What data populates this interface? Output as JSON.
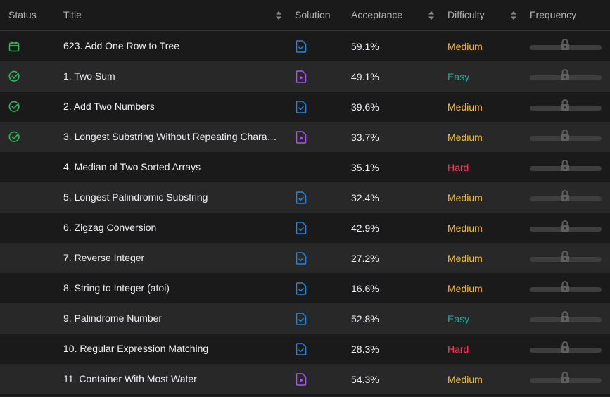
{
  "header": {
    "status": "Status",
    "title": "Title",
    "solution": "Solution",
    "acceptance": "Acceptance",
    "difficulty": "Difficulty",
    "frequency": "Frequency"
  },
  "colors": {
    "easy": "#00b8a3",
    "medium": "#ffc01e",
    "hard": "#ff375f",
    "solved": "#2cbb5d",
    "article": "#1e88e5",
    "video": "#a855f7"
  },
  "rows": [
    {
      "status": "calendar-icon",
      "title": "623. Add One Row to Tree",
      "solution": "article",
      "acceptance": "59.1%",
      "difficulty": "Medium"
    },
    {
      "status": "solved-check-icon",
      "title": "1. Two Sum",
      "solution": "video",
      "acceptance": "49.1%",
      "difficulty": "Easy"
    },
    {
      "status": "solved-check-icon",
      "title": "2. Add Two Numbers",
      "solution": "article",
      "acceptance": "39.6%",
      "difficulty": "Medium"
    },
    {
      "status": "solved-check-icon",
      "title": "3. Longest Substring Without Repeating Charac...",
      "solution": "video",
      "acceptance": "33.7%",
      "difficulty": "Medium"
    },
    {
      "status": "",
      "title": "4. Median of Two Sorted Arrays",
      "solution": "",
      "acceptance": "35.1%",
      "difficulty": "Hard"
    },
    {
      "status": "",
      "title": "5. Longest Palindromic Substring",
      "solution": "article",
      "acceptance": "32.4%",
      "difficulty": "Medium"
    },
    {
      "status": "",
      "title": "6. Zigzag Conversion",
      "solution": "article",
      "acceptance": "42.9%",
      "difficulty": "Medium"
    },
    {
      "status": "",
      "title": "7. Reverse Integer",
      "solution": "article",
      "acceptance": "27.2%",
      "difficulty": "Medium"
    },
    {
      "status": "",
      "title": "8. String to Integer (atoi)",
      "solution": "article",
      "acceptance": "16.6%",
      "difficulty": "Medium"
    },
    {
      "status": "",
      "title": "9. Palindrome Number",
      "solution": "article",
      "acceptance": "52.8%",
      "difficulty": "Easy"
    },
    {
      "status": "",
      "title": "10. Regular Expression Matching",
      "solution": "article",
      "acceptance": "28.3%",
      "difficulty": "Hard"
    },
    {
      "status": "",
      "title": "11. Container With Most Water",
      "solution": "video",
      "acceptance": "54.3%",
      "difficulty": "Medium"
    }
  ]
}
